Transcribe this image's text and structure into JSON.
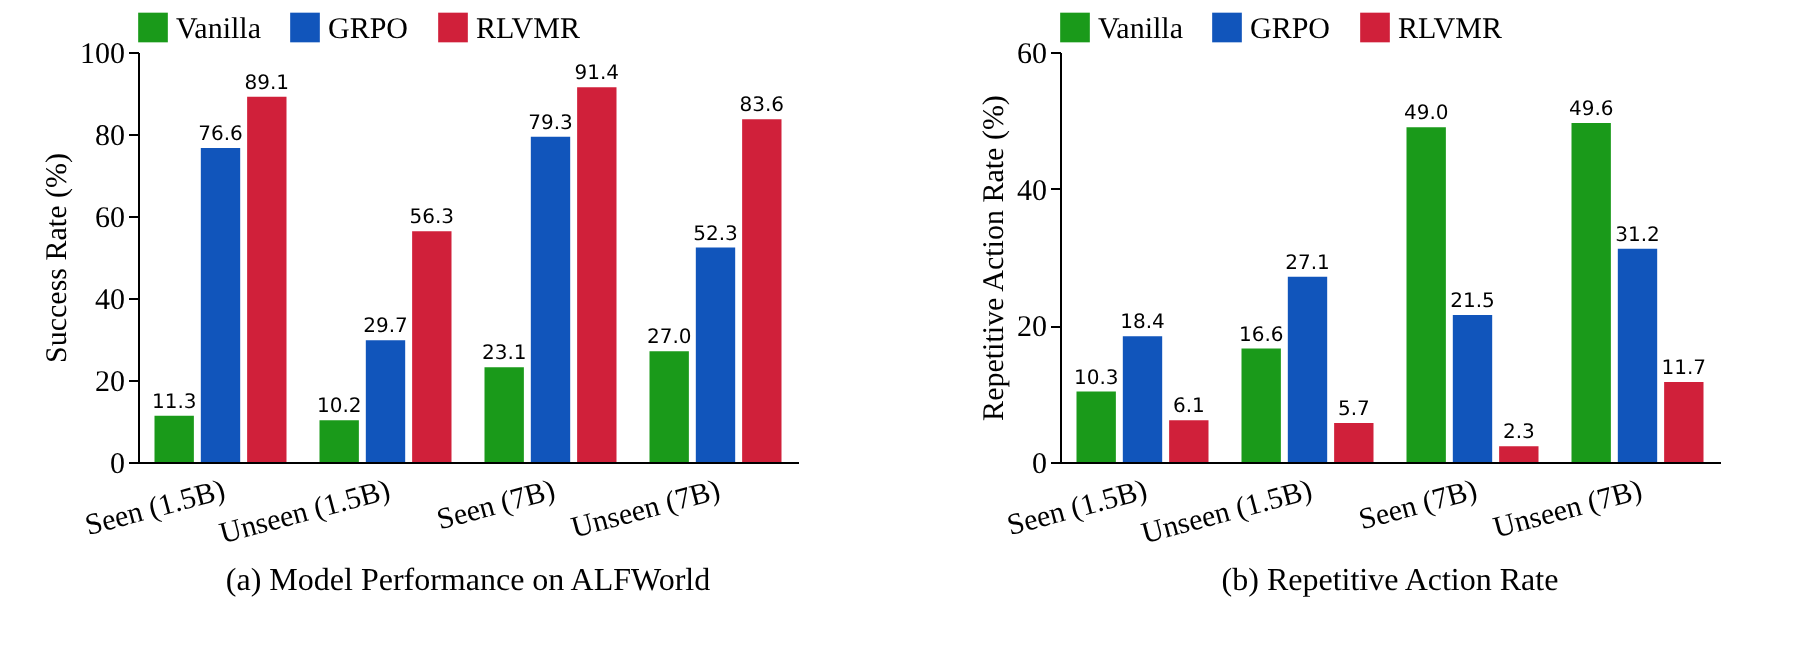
{
  "chart_data": [
    {
      "type": "bar",
      "title": "(a) Model Performance on ALFWorld",
      "ylabel": "Success Rate (%)",
      "categories": [
        "Seen (1.5B)",
        "Unseen (1.5B)",
        "Seen (7B)",
        "Unseen (7B)"
      ],
      "series": [
        {
          "name": "Vanilla",
          "color": "#1a9a1a",
          "values": [
            11.3,
            10.2,
            23.1,
            27.0
          ],
          "value_labels": [
            "11.3",
            "10.2",
            "23.1",
            "27.0"
          ]
        },
        {
          "name": "GRPO",
          "color": "#1155bb",
          "values": [
            76.6,
            29.7,
            79.3,
            52.3
          ],
          "value_labels": [
            "76.6",
            "29.7",
            "79.3",
            "52.3"
          ]
        },
        {
          "name": "RLVMR",
          "color": "#d0203a",
          "values": [
            89.1,
            56.3,
            91.4,
            83.6
          ],
          "value_labels": [
            "89.1",
            "56.3",
            "91.4",
            "83.6"
          ]
        }
      ],
      "ylim": [
        0,
        100
      ],
      "yticks": [
        0,
        20,
        40,
        60,
        80,
        100
      ],
      "legend": "top",
      "grid": false
    },
    {
      "type": "bar",
      "title": "(b) Repetitive Action Rate",
      "ylabel": "Repetitive Action Rate (%)",
      "categories": [
        "Seen (1.5B)",
        "Unseen (1.5B)",
        "Seen (7B)",
        "Unseen (7B)"
      ],
      "series": [
        {
          "name": "Vanilla",
          "color": "#1a9a1a",
          "values": [
            10.3,
            16.6,
            49.0,
            49.6
          ],
          "value_labels": [
            "10.3",
            "16.6",
            "49.0",
            "49.6"
          ]
        },
        {
          "name": "GRPO",
          "color": "#1155bb",
          "values": [
            18.4,
            27.1,
            21.5,
            31.2
          ],
          "value_labels": [
            "18.4",
            "27.1",
            "21.5",
            "31.2"
          ]
        },
        {
          "name": "RLVMR",
          "color": "#d0203a",
          "values": [
            6.1,
            5.7,
            2.3,
            11.7
          ],
          "value_labels": [
            "6.1",
            "5.7",
            "2.3",
            "11.7"
          ]
        }
      ],
      "ylim": [
        0,
        60
      ],
      "yticks": [
        0,
        20,
        40,
        60
      ],
      "legend": "top",
      "grid": false
    }
  ]
}
